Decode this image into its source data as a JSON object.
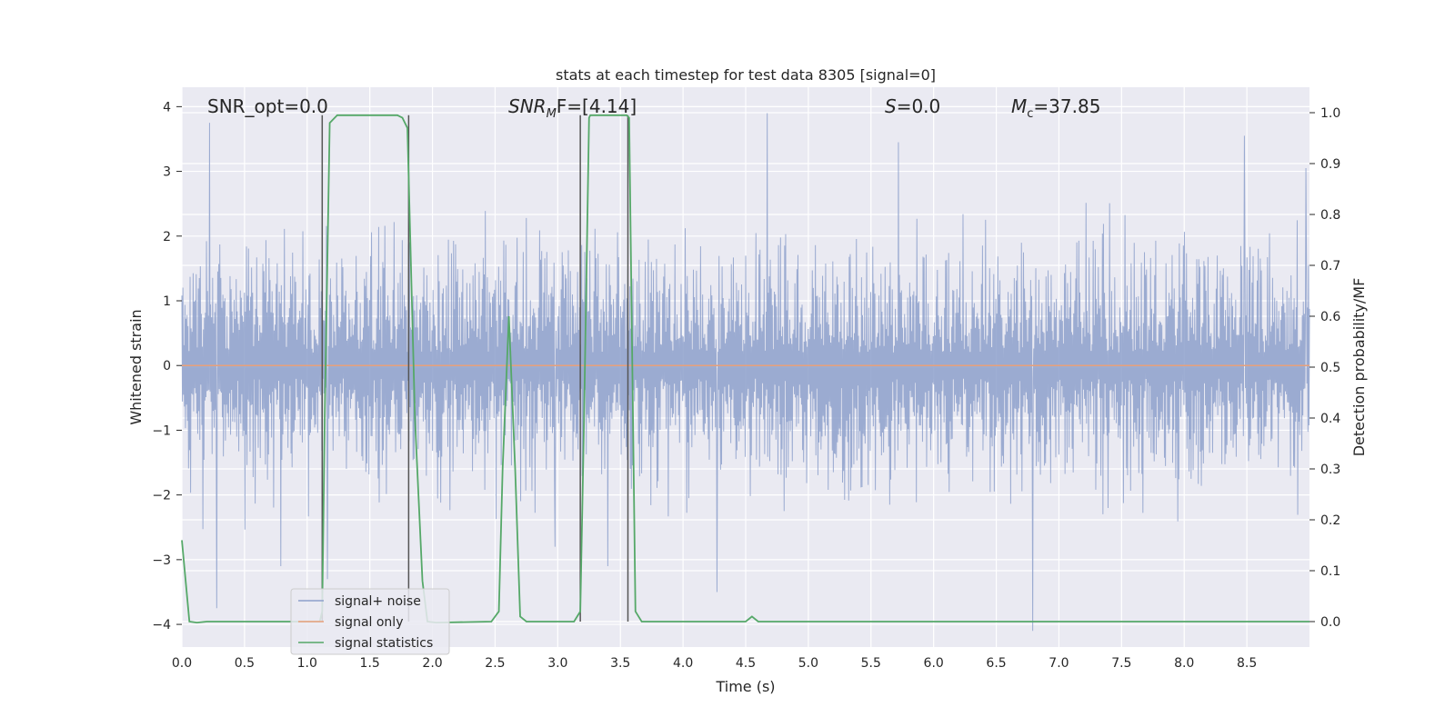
{
  "chart_data": {
    "type": "line",
    "title": "stats at each timestep for test data 8305 [signal=0]",
    "xlabel": "Time (s)",
    "ylabel": "Whitened strain",
    "y2label": "Detection probability/MF",
    "xlim": [
      0,
      9
    ],
    "ylim": [
      -4.35,
      4.3
    ],
    "y2lim": [
      -0.05,
      1.05
    ],
    "xticks": [
      "0.0",
      "0.5",
      "1.0",
      "1.5",
      "2.0",
      "2.5",
      "3.0",
      "3.5",
      "4.0",
      "4.5",
      "5.0",
      "5.5",
      "6.0",
      "6.5",
      "7.0",
      "7.5",
      "8.0",
      "8.5"
    ],
    "yticks": [
      "4",
      "3",
      "2",
      "1",
      "0",
      "−1",
      "−2",
      "−3",
      "−4"
    ],
    "y2ticks": [
      "1.0",
      "0.9",
      "0.8",
      "0.7",
      "0.6",
      "0.5",
      "0.4",
      "0.3",
      "0.2",
      "0.1",
      "0.0"
    ],
    "grid": true,
    "legend_position": "lower-left",
    "annotations": {
      "snr_opt": "SNR_opt=0.0",
      "snr_mf_prefix": "SNR",
      "snr_mf_sub": "M",
      "snr_mf_suffix": "F=[4.14]",
      "s_label": "S",
      "s_value": "=0.0",
      "mc_label": "M",
      "mc_sub": "c",
      "mc_value": "=37.85"
    },
    "vertical_lines_x": [
      1.12,
      1.81,
      3.18,
      3.56
    ],
    "series": [
      {
        "name": "signal+ noise",
        "color": "#8da0cb",
        "note": "noise amplitude roughly -2.5 to 3 with sparse spikes",
        "spikes": [
          [
            0.22,
            3.75
          ],
          [
            0.28,
            -3.75
          ],
          [
            0.79,
            -3.1
          ],
          [
            1.16,
            -3.3
          ],
          [
            2.98,
            -2.8
          ],
          [
            3.4,
            -3.1
          ],
          [
            4.27,
            -3.5
          ],
          [
            4.67,
            3.9
          ],
          [
            5.72,
            3.45
          ],
          [
            6.79,
            -4.1
          ],
          [
            8.48,
            3.55
          ],
          [
            8.97,
            3.05
          ]
        ]
      },
      {
        "name": "signal only",
        "color": "#e8a07a",
        "x": [
          0,
          9
        ],
        "y": [
          0,
          0
        ]
      },
      {
        "name": "signal statistics",
        "color": "#55a868",
        "axis": "right",
        "x": [
          0.0,
          0.06,
          0.12,
          0.2,
          1.08,
          1.1,
          1.12,
          1.14,
          1.18,
          1.24,
          1.72,
          1.76,
          1.8,
          1.86,
          1.92,
          1.96,
          2.03,
          2.47,
          2.53,
          2.56,
          2.61,
          2.66,
          2.7,
          2.75,
          3.13,
          3.18,
          3.21,
          3.25,
          3.26,
          3.55,
          3.57,
          3.62,
          3.67,
          3.73,
          4.5,
          4.55,
          4.6,
          4.66,
          4.72,
          9.0
        ],
        "y": [
          0.16,
          0.0,
          -0.002,
          0.0,
          0.0,
          0.0,
          0.02,
          0.4,
          0.98,
          0.995,
          0.995,
          0.99,
          0.97,
          0.4,
          0.08,
          0.0,
          -0.002,
          0.0,
          0.02,
          0.3,
          0.6,
          0.3,
          0.01,
          0.0,
          0.0,
          0.02,
          0.4,
          0.99,
          0.995,
          0.995,
          0.99,
          0.02,
          0.0,
          0.0,
          0.0,
          0.01,
          0.0,
          0.0,
          0.0,
          0.0
        ]
      }
    ]
  }
}
